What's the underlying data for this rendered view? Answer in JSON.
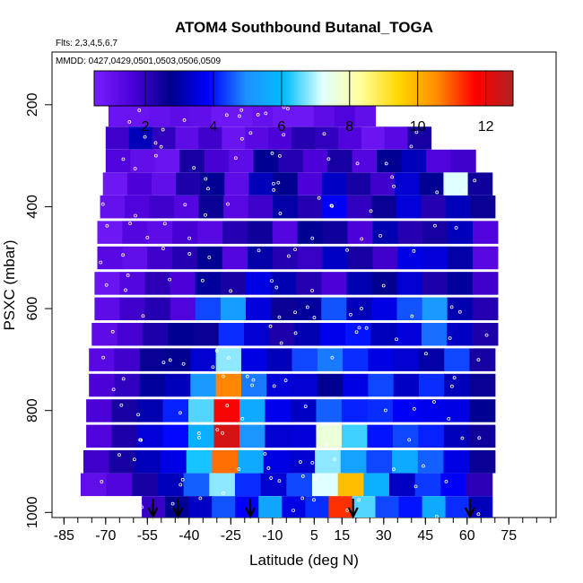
{
  "chart_data": {
    "type": "heatmap",
    "title": "ATOM4 Southbound Butanal_TOGA",
    "flights_label": "Flts: 2,3,4,5,6,7",
    "dates_label": "MMDD: 0427,0429,0501,0503,0506,0509",
    "xlabel": "Latitude (deg N)",
    "ylabel": "PSXC (mbar)",
    "xlim": [
      -88,
      92
    ],
    "ylim": [
      1010,
      100
    ],
    "x_ticks": [
      -85,
      -70,
      -55,
      -40,
      -25,
      -10,
      5,
      15,
      30,
      45,
      60,
      75
    ],
    "x_tick_labels": [
      "-85",
      "-70",
      "-55",
      "-40",
      "-25",
      "-10",
      "5",
      "15",
      "30",
      "45",
      "60",
      "75"
    ],
    "y_ticks": [
      200,
      400,
      600,
      800,
      1000
    ],
    "y_tick_labels": [
      "200",
      "400",
      "600",
      "800",
      "1000"
    ],
    "colorbar": {
      "range": [
        0.5,
        12.8
      ],
      "ticks": [
        2,
        4,
        6,
        8,
        10,
        12
      ],
      "tick_labels": [
        "2",
        "4",
        "6",
        "8",
        "10",
        "12"
      ],
      "colors": [
        "#7a1fff",
        "#4b00d8",
        "#00008b",
        "#0000ff",
        "#1e90ff",
        "#00bfff",
        "#e0ffff",
        "#ffff99",
        "#ffd700",
        "#ff8c00",
        "#ff0000",
        "#b22222"
      ]
    },
    "profile_arrow_latitudes": [
      -53,
      -44,
      -18,
      19,
      61
    ],
    "layers": [
      {
        "p": 220,
        "lat_min": -69,
        "lat_max": 27,
        "values": [
          0.9,
          0.9,
          1.0,
          1.2,
          1.1,
          0.8,
          0.8,
          1.0,
          0.8,
          0.8,
          1.2,
          1.5,
          1.1
        ]
      },
      {
        "p": 265,
        "lat_min": -70,
        "lat_max": 47,
        "values": [
          1.8,
          3.2,
          2.0,
          1.2,
          1.8,
          0.9,
          1.3,
          1.6,
          2.2,
          2.0,
          1.5,
          0.9,
          1.3,
          2.4
        ]
      },
      {
        "p": 310,
        "lat_min": -70,
        "lat_max": 63,
        "values": [
          1.5,
          1.1,
          0.9,
          2.4,
          1.7,
          1.2,
          2.8,
          2.2,
          1.6,
          2.4,
          1.4,
          2.8,
          3.2,
          1.5,
          1.8
        ]
      },
      {
        "p": 355,
        "lat_min": -71,
        "lat_max": 69,
        "values": [
          0.8,
          1.6,
          1.1,
          2.3,
          2.8,
          1.2,
          3.2,
          2.7,
          1.6,
          3.3,
          2.4,
          1.8,
          3.4,
          2.8,
          7.2,
          2.5
        ]
      },
      {
        "p": 400,
        "lat_min": -72,
        "lat_max": 70,
        "values": [
          1.0,
          1.5,
          1.8,
          1.4,
          2.6,
          1.3,
          1.8,
          3.0,
          2.2,
          3.8,
          2.0,
          2.6,
          3.5,
          2.2,
          3.2,
          2.6
        ]
      },
      {
        "p": 450,
        "lat_min": -73,
        "lat_max": 71,
        "values": [
          0.8,
          1.4,
          1.2,
          1.7,
          1.3,
          2.2,
          2.5,
          1.4,
          2.8,
          2.5,
          1.6,
          3.1,
          2.2,
          2.4,
          3.2,
          1.5
        ]
      },
      {
        "p": 500,
        "lat_min": -73,
        "lat_max": 71,
        "values": [
          1.3,
          1.1,
          1.8,
          2.2,
          2.8,
          1.4,
          3.0,
          2.2,
          1.9,
          3.3,
          2.4,
          1.8,
          3.6,
          3.5,
          3.0,
          1.3
        ]
      },
      {
        "p": 550,
        "lat_min": -74,
        "lat_max": 71,
        "values": [
          0.9,
          1.4,
          2.1,
          1.6,
          2.9,
          2.4,
          3.6,
          3.1,
          2.2,
          1.6,
          3.1,
          2.7,
          3.4,
          2.3,
          2.9,
          1.8
        ]
      },
      {
        "p": 600,
        "lat_min": -74,
        "lat_max": 71,
        "values": [
          1.2,
          1.8,
          2.2,
          1.5,
          4.4,
          5.3,
          3.5,
          2.6,
          2.9,
          4.5,
          3.2,
          3.6,
          4.5,
          5.2,
          3.1,
          2.2
        ]
      },
      {
        "p": 650,
        "lat_min": -75,
        "lat_max": 71,
        "values": [
          1.2,
          1.7,
          2.3,
          2.8,
          2.6,
          4.2,
          3.4,
          2.3,
          3.1,
          3.7,
          4.0,
          3.2,
          3.5,
          4.7,
          3.3,
          2.3
        ]
      },
      {
        "p": 700,
        "lat_min": -76,
        "lat_max": 70,
        "values": [
          1.3,
          1.8,
          2.6,
          2.7,
          3.4,
          6.8,
          3.6,
          3.2,
          4.4,
          4.8,
          4.2,
          3.6,
          3.4,
          3.0,
          4.4,
          2.4
        ]
      },
      {
        "p": 750,
        "lat_min": -76,
        "lat_max": 70,
        "values": [
          1.6,
          2.0,
          2.9,
          3.2,
          5.2,
          10.6,
          4.8,
          3.5,
          3.4,
          2.8,
          3.6,
          4.4,
          3.3,
          4.2,
          3.2,
          2.6
        ]
      },
      {
        "p": 800,
        "lat_min": -77,
        "lat_max": 70,
        "values": [
          1.6,
          2.4,
          3.1,
          4.1,
          6.5,
          11.8,
          5.6,
          3.7,
          3.3,
          4.6,
          4.1,
          4.2,
          3.8,
          3.7,
          3.6,
          2.8
        ]
      },
      {
        "p": 850,
        "lat_min": -77,
        "lat_max": 70,
        "values": [
          1.5,
          2.3,
          3.5,
          3.9,
          5.7,
          12.3,
          5.1,
          3.4,
          3.5,
          7.6,
          6.4,
          4.0,
          4.4,
          4.1,
          3.2,
          2.5
        ]
      },
      {
        "p": 900,
        "lat_min": -78,
        "lat_max": 70,
        "values": [
          1.8,
          2.4,
          3.2,
          3.6,
          6.2,
          10.8,
          5.6,
          3.6,
          3.4,
          6.8,
          5.4,
          4.4,
          5.6,
          4.6,
          3.6,
          2.6
        ]
      },
      {
        "p": 945,
        "lat_min": -79,
        "lat_max": 69,
        "values": [
          1.1,
          1.5,
          2.4,
          3.2,
          4.6,
          6.8,
          4.2,
          3.4,
          4.4,
          7.2,
          9.8,
          5.7,
          3.3,
          4.3,
          3.8,
          2.1
        ]
      },
      {
        "p": 990,
        "lat_min": -57,
        "lat_max": 69,
        "values": [
          1.9,
          2.8,
          3.3,
          4.5,
          3.8,
          5.5,
          3.6,
          4.2,
          11.3,
          6.5,
          4.4,
          4.0,
          5.6,
          4.2,
          3.2
        ]
      }
    ]
  }
}
